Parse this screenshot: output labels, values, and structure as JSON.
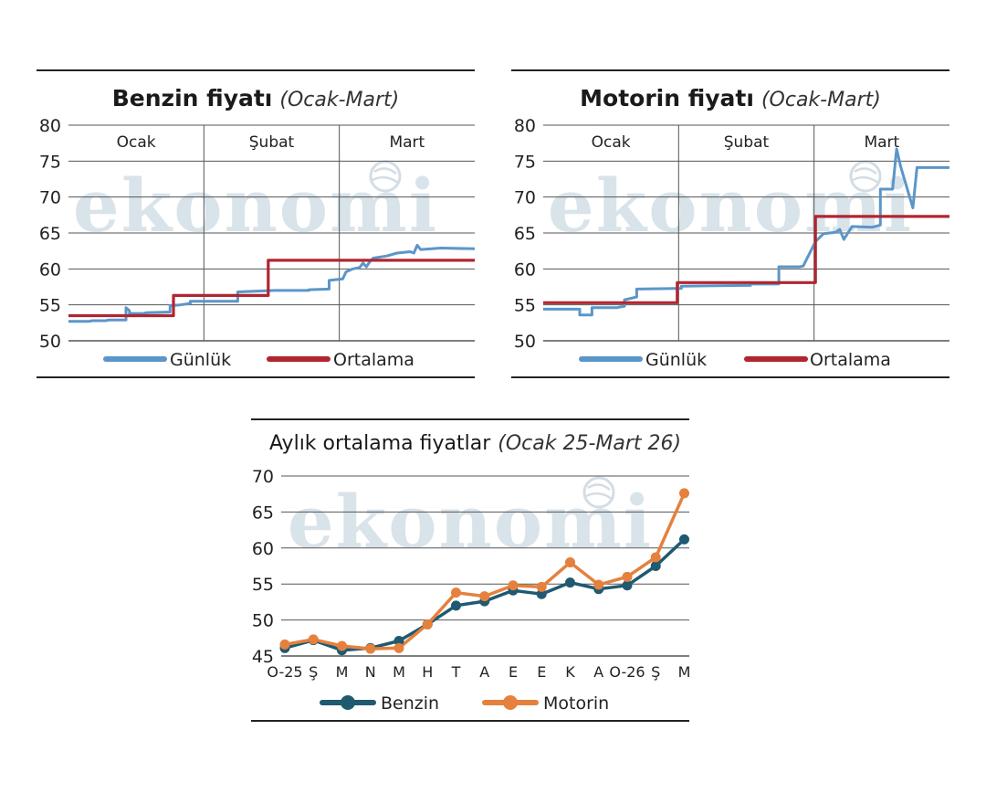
{
  "watermark": {
    "text": "ekonomi",
    "color": "#d9e3ea"
  },
  "colors": {
    "daily": "#5b96c9",
    "average": "#b02630",
    "benzin": "#1f5a70",
    "motorin": "#e5813d",
    "grid": "#555555",
    "rule": "#222222"
  },
  "chart_data": [
    {
      "id": "benzin",
      "type": "line",
      "title": "Benzin fiyatı",
      "subtitle": "(Ocak-Mart)",
      "ylim": [
        50,
        80
      ],
      "yticks": [
        "80",
        "75",
        "70",
        "65",
        "60",
        "55",
        "50"
      ],
      "sections": [
        "Ocak",
        "Şubat",
        "Mart"
      ],
      "legend": [
        "Günlük",
        "Ortalama"
      ],
      "series": [
        {
          "name": "Günlük",
          "points": [
            [
              0,
              52.7
            ],
            [
              6,
              52.7
            ],
            [
              7,
              52.8
            ],
            [
              11,
              52.8
            ],
            [
              12,
              52.9
            ],
            [
              17,
              52.9
            ],
            [
              17,
              54.6
            ],
            [
              18,
              54.2
            ],
            [
              18,
              53.8
            ],
            [
              22,
              53.8
            ],
            [
              23,
              53.9
            ],
            [
              30,
              54.0
            ],
            [
              30,
              54.9
            ],
            [
              33,
              55.0
            ],
            [
              36,
              55.2
            ],
            [
              36,
              55.5
            ],
            [
              50,
              55.5
            ],
            [
              50,
              56.8
            ],
            [
              61,
              57.0
            ],
            [
              71,
              57.0
            ],
            [
              71,
              57.1
            ],
            [
              77,
              57.2
            ],
            [
              77,
              58.4
            ],
            [
              81,
              58.6
            ],
            [
              82,
              59.6
            ],
            [
              84,
              60.0
            ],
            [
              86,
              60.2
            ],
            [
              87,
              60.8
            ],
            [
              88,
              60.3
            ],
            [
              89,
              61.0
            ],
            [
              90,
              61.5
            ],
            [
              94,
              61.8
            ],
            [
              97,
              62.2
            ],
            [
              101,
              62.4
            ],
            [
              102,
              62.2
            ],
            [
              103,
              63.3
            ],
            [
              104,
              62.7
            ],
            [
              110,
              62.9
            ],
            [
              120,
              62.8
            ]
          ]
        },
        {
          "name": "Ortalama",
          "points": [
            [
              0,
              53.5
            ],
            [
              31,
              53.5
            ],
            [
              31,
              56.3
            ],
            [
              59,
              56.3
            ],
            [
              59,
              61.2
            ],
            [
              120,
              61.2
            ]
          ]
        }
      ]
    },
    {
      "id": "motorin",
      "type": "line",
      "title": "Motorin fiyatı",
      "subtitle": "(Ocak-Mart)",
      "ylim": [
        50,
        80
      ],
      "yticks": [
        "80",
        "75",
        "70",
        "65",
        "60",
        "55",
        "50"
      ],
      "sections": [
        "Ocak",
        "Şubat",
        "Mart"
      ],
      "legend": [
        "Günlük",
        "Ortalama"
      ],
      "series": [
        {
          "name": "Günlük",
          "points": [
            [
              0,
              54.4
            ],
            [
              9,
              54.4
            ],
            [
              9,
              53.6
            ],
            [
              12,
              53.6
            ],
            [
              12,
              54.6
            ],
            [
              18,
              54.6
            ],
            [
              20,
              54.8
            ],
            [
              20,
              55.7
            ],
            [
              23,
              56.1
            ],
            [
              23,
              57.2
            ],
            [
              34,
              57.3
            ],
            [
              34,
              57.6
            ],
            [
              50,
              57.7
            ],
            [
              51,
              57.7
            ],
            [
              51,
              57.9
            ],
            [
              58,
              57.9
            ],
            [
              58,
              60.3
            ],
            [
              63,
              60.3
            ],
            [
              64,
              60.4
            ],
            [
              67,
              63.8
            ],
            [
              69,
              64.9
            ],
            [
              72,
              65.1
            ],
            [
              73,
              65.5
            ],
            [
              74,
              64.1
            ],
            [
              76,
              65.9
            ],
            [
              81,
              65.8
            ],
            [
              83,
              66.1
            ],
            [
              83,
              71.1
            ],
            [
              85,
              71.1
            ],
            [
              86,
              71.1
            ],
            [
              87,
              76.7
            ],
            [
              88,
              74.2
            ],
            [
              91,
              68.5
            ],
            [
              92,
              74.1
            ],
            [
              95,
              74.1
            ],
            [
              100,
              74.1
            ]
          ]
        },
        {
          "name": "Ortalama",
          "points": [
            [
              0,
              55.3
            ],
            [
              33,
              55.3
            ],
            [
              33,
              58.1
            ],
            [
              67,
              58.1
            ],
            [
              67,
              67.3
            ],
            [
              100,
              67.3
            ]
          ]
        }
      ]
    },
    {
      "id": "monthly",
      "type": "line",
      "title": "Aylık ortalama fiyatlar",
      "subtitle": "(Ocak 25-Mart 26)",
      "ylim": [
        45,
        70
      ],
      "yticks": [
        "70",
        "65",
        "60",
        "55",
        "50",
        "45"
      ],
      "categories": [
        "O-25",
        "Ş",
        "M",
        "N",
        "M",
        "H",
        "T",
        "A",
        "E",
        "E",
        "K",
        "A",
        "O-26",
        "Ş",
        "M"
      ],
      "legend": [
        "Benzin",
        "Motorin"
      ],
      "series": [
        {
          "name": "Benzin",
          "values": [
            46.1,
            47.2,
            45.8,
            46.1,
            47.1,
            49.4,
            52.0,
            52.6,
            54.1,
            53.6,
            55.2,
            54.3,
            54.8,
            57.5,
            61.2
          ]
        },
        {
          "name": "Motorin",
          "values": [
            46.6,
            47.3,
            46.4,
            46.0,
            46.1,
            49.4,
            53.8,
            53.3,
            54.8,
            54.6,
            58.0,
            54.9,
            56.0,
            58.7,
            67.6
          ]
        }
      ]
    }
  ]
}
